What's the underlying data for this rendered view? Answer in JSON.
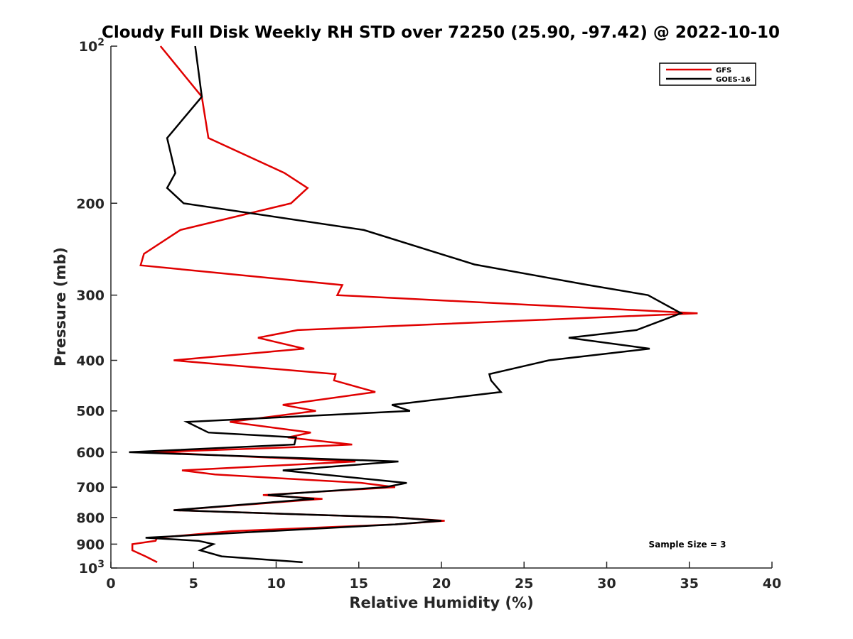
{
  "chart_data": {
    "type": "line",
    "title": "Cloudy Full Disk Weekly RH STD over 72250 (25.90, -97.42) @ 2022-10-10",
    "xlabel": "Relative Humidity (%)",
    "ylabel": "Pressure (mb)",
    "xlim": [
      0,
      40
    ],
    "ylim": [
      100,
      1000
    ],
    "y_scale": "log",
    "y_reversed": true,
    "grid": false,
    "x_ticks": [
      {
        "value": 0,
        "label": "0"
      },
      {
        "value": 5,
        "label": "5"
      },
      {
        "value": 10,
        "label": "10"
      },
      {
        "value": 15,
        "label": "15"
      },
      {
        "value": 20,
        "label": "20"
      },
      {
        "value": 25,
        "label": "25"
      },
      {
        "value": 30,
        "label": "30"
      },
      {
        "value": 35,
        "label": "35"
      },
      {
        "value": 40,
        "label": "40"
      }
    ],
    "y_ticks": [
      {
        "value": 100,
        "label": "10",
        "exp": "2"
      },
      {
        "value": 200,
        "label": "200"
      },
      {
        "value": 300,
        "label": "300"
      },
      {
        "value": 400,
        "label": "400"
      },
      {
        "value": 500,
        "label": "500"
      },
      {
        "value": 600,
        "label": "600"
      },
      {
        "value": 700,
        "label": "700"
      },
      {
        "value": 800,
        "label": "800"
      },
      {
        "value": 900,
        "label": "900"
      },
      {
        "value": 1000,
        "label": "10",
        "exp": "3"
      }
    ],
    "legend": {
      "position": "top-right"
    },
    "annotation": "Sample Size = 3",
    "series": [
      {
        "name": "GFS",
        "color": "#e00000",
        "points": [
          [
            3.0,
            100
          ],
          [
            5.5,
            125
          ],
          [
            5.9,
            150
          ],
          [
            10.5,
            175
          ],
          [
            11.9,
            187
          ],
          [
            10.9,
            200
          ],
          [
            4.2,
            225
          ],
          [
            2.0,
            250
          ],
          [
            1.8,
            263
          ],
          [
            14.0,
            287
          ],
          [
            13.7,
            300
          ],
          [
            35.5,
            325
          ],
          [
            11.3,
            350
          ],
          [
            8.9,
            362
          ],
          [
            11.7,
            380
          ],
          [
            3.8,
            400
          ],
          [
            13.6,
            425
          ],
          [
            13.5,
            437
          ],
          [
            16.0,
            460
          ],
          [
            10.4,
            487
          ],
          [
            12.4,
            500
          ],
          [
            7.2,
            525
          ],
          [
            12.1,
            550
          ],
          [
            10.7,
            562
          ],
          [
            14.6,
            580
          ],
          [
            11.0,
            587
          ],
          [
            2.5,
            600
          ],
          [
            14.8,
            625
          ],
          [
            4.3,
            650
          ],
          [
            6.3,
            662
          ],
          [
            15.2,
            687
          ],
          [
            17.2,
            700
          ],
          [
            9.2,
            725
          ],
          [
            12.8,
            737
          ],
          [
            3.8,
            775
          ],
          [
            17.2,
            800
          ],
          [
            20.2,
            812
          ],
          [
            17.2,
            825
          ],
          [
            7.3,
            850
          ],
          [
            2.8,
            875
          ],
          [
            2.7,
            887
          ],
          [
            1.3,
            900
          ],
          [
            1.3,
            925
          ],
          [
            2.1,
            950
          ],
          [
            2.8,
            975
          ]
        ]
      },
      {
        "name": "GOES-16",
        "color": "#000000",
        "points": [
          [
            5.1,
            100
          ],
          [
            5.5,
            125
          ],
          [
            3.4,
            150
          ],
          [
            3.9,
            175
          ],
          [
            3.4,
            187
          ],
          [
            4.4,
            200
          ],
          [
            15.3,
            225
          ],
          [
            22.0,
            262
          ],
          [
            28.9,
            287
          ],
          [
            32.5,
            300
          ],
          [
            34.5,
            325
          ],
          [
            31.8,
            350
          ],
          [
            27.7,
            362
          ],
          [
            32.6,
            380
          ],
          [
            26.5,
            400
          ],
          [
            22.9,
            425
          ],
          [
            23.0,
            437
          ],
          [
            23.6,
            460
          ],
          [
            17.0,
            487
          ],
          [
            18.1,
            500
          ],
          [
            4.6,
            525
          ],
          [
            5.9,
            550
          ],
          [
            11.2,
            562
          ],
          [
            11.1,
            580
          ],
          [
            1.1,
            600
          ],
          [
            17.4,
            625
          ],
          [
            10.4,
            650
          ],
          [
            12.8,
            662
          ],
          [
            17.9,
            687
          ],
          [
            16.6,
            700
          ],
          [
            9.5,
            725
          ],
          [
            12.3,
            737
          ],
          [
            3.8,
            775
          ],
          [
            17.2,
            800
          ],
          [
            20.0,
            812
          ],
          [
            17.2,
            825
          ],
          [
            2.1,
            875
          ],
          [
            5.3,
            887
          ],
          [
            6.2,
            900
          ],
          [
            5.4,
            925
          ],
          [
            6.7,
            950
          ],
          [
            11.6,
            975
          ]
        ]
      }
    ]
  }
}
